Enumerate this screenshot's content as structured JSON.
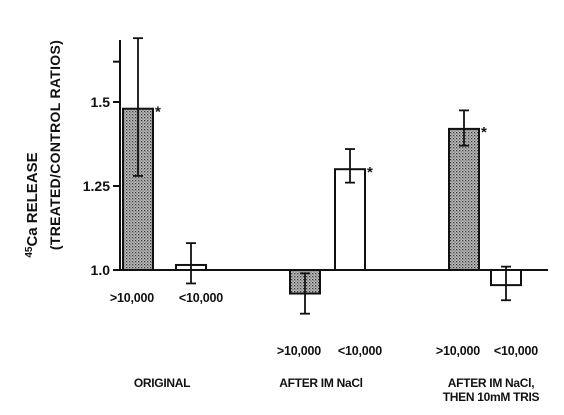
{
  "chart_data": {
    "type": "bar",
    "ylabel": "45Ca RELEASE",
    "ylabel_superscript": "45",
    "ylabel_main": "Ca RELEASE",
    "ylabel_sub": "(TREATED/CONTROL RATIOS)",
    "yticks": [
      "1.0",
      "1.25",
      "1.5"
    ],
    "ylim": [
      0.9,
      1.75
    ],
    "baseline": 1.0,
    "groups": [
      {
        "name": "ORIGINAL",
        "name_lines": [
          "ORIGINAL"
        ],
        "bars": [
          {
            "label": ">10,000",
            "value": 1.48,
            "err_low": 1.28,
            "err_high": 1.69,
            "fill": "stipple",
            "star": true
          },
          {
            "label": "<10,000",
            "value": 1.015,
            "err_low": 0.96,
            "err_high": 1.08,
            "fill": "white",
            "star": false
          }
        ]
      },
      {
        "name": "AFTER IM NaCl",
        "name_lines": [
          "AFTER IM NaCl"
        ],
        "bars": [
          {
            "label": ">10,000",
            "value": 0.93,
            "err_low": 0.87,
            "err_high": 0.99,
            "fill": "stipple",
            "star": false
          },
          {
            "label": "<10,000",
            "value": 1.3,
            "err_low": 1.26,
            "err_high": 1.36,
            "fill": "white",
            "star": true
          }
        ]
      },
      {
        "name": "AFTER IM NaCl, THEN 10mM TRIS",
        "name_lines": [
          "AFTER IM NaCl,",
          "THEN 10mM TRIS"
        ],
        "bars": [
          {
            "label": ">10,000",
            "value": 1.42,
            "err_low": 1.37,
            "err_high": 1.475,
            "fill": "stipple",
            "star": true
          },
          {
            "label": "<10,000",
            "value": 0.955,
            "err_low": 0.91,
            "err_high": 1.01,
            "fill": "white",
            "star": false
          }
        ]
      }
    ],
    "significance_marker": "*",
    "colors": {
      "ink": "#111111",
      "stipple_bg": "#bdbdbd",
      "stipple_dot": "#3a3a3a"
    }
  }
}
